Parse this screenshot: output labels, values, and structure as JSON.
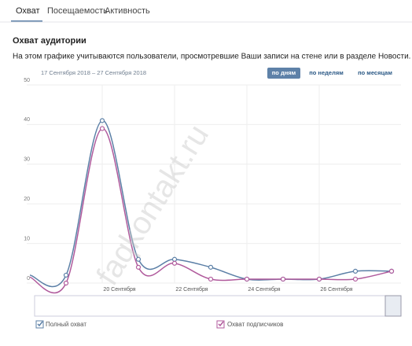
{
  "tabs": [
    "Охват",
    "Посещаемость",
    "Активность"
  ],
  "section_title": "Охват аудитории",
  "description": "На этом графике учитываются пользователи, просмотревшие Ваши записи на стене или в разделе Новости.",
  "date_range": "17 Сентября 2018 – 27 Сентября 2018",
  "period_buttons": [
    "по дням",
    "по неделям",
    "по месяцам"
  ],
  "watermark": "faqkontakt.ru",
  "chart_data": {
    "type": "line",
    "categories": [
      null,
      null,
      "20 Сентября",
      null,
      "22 Сентября",
      null,
      "24 Сентября",
      null,
      "26 Сентября",
      null,
      null
    ],
    "series": [
      {
        "name": "Полный охват",
        "color": "#5b7fa6",
        "values": [
          2,
          2,
          41,
          6,
          6,
          4,
          1,
          1,
          1,
          3,
          3
        ]
      },
      {
        "name": "Охват подписчиков",
        "color": "#b05a9c",
        "values": [
          1.5,
          0,
          39,
          4,
          5,
          1,
          1,
          1,
          1,
          1,
          3
        ]
      }
    ],
    "ylim": [
      0,
      50
    ],
    "yticks": [
      0,
      10,
      20,
      30,
      40,
      50
    ],
    "grid": true
  }
}
